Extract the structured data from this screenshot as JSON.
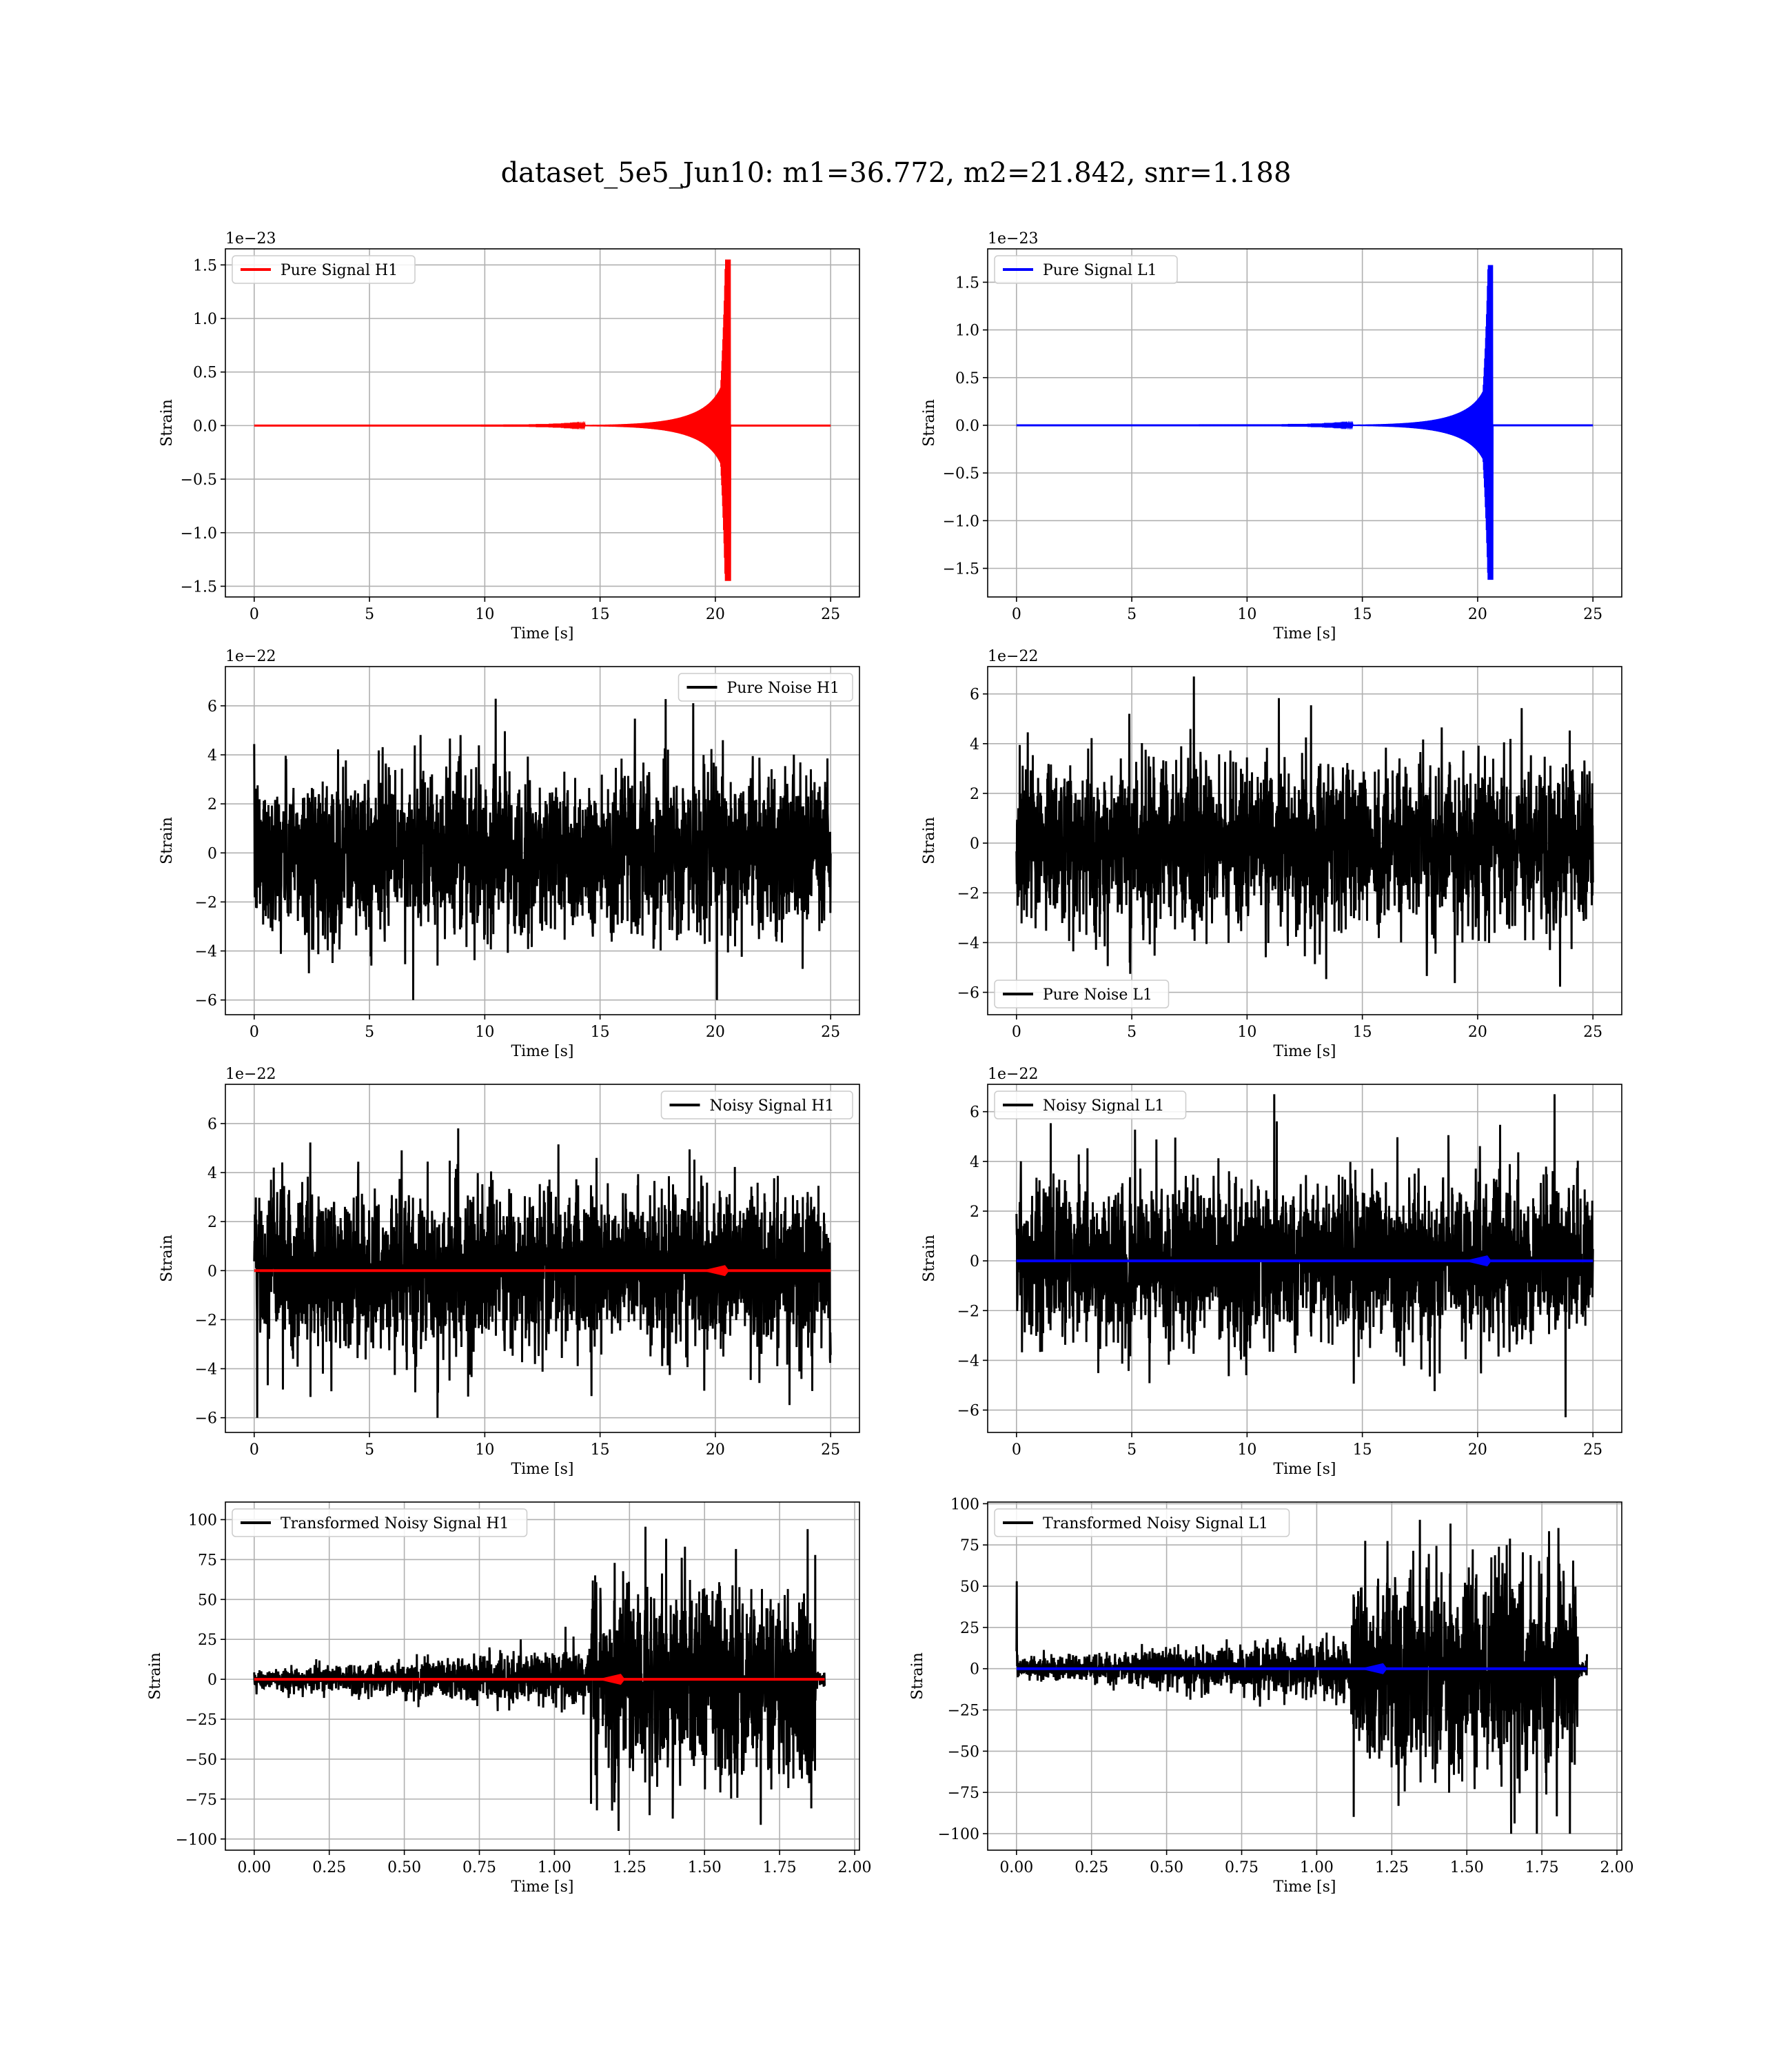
{
  "figure": {
    "title": "dataset_5e5_Jun10: m1=36.772, m2=21.842, snr=1.188"
  },
  "colors": {
    "h1_signal": "#ff0000",
    "l1_signal": "#0000ff",
    "noise": "#000000",
    "grid": "#b0b0b0"
  },
  "chart_data": [
    {
      "type": "line",
      "panel": "pure-signal-h1",
      "xlabel": "Time [s]",
      "ylabel": "Strain",
      "offset_text": "1e−23",
      "xlim": [
        -1.25,
        26.25
      ],
      "ylim": [
        -1.6,
        1.65
      ],
      "xticks": [
        0,
        5,
        10,
        15,
        20,
        25
      ],
      "xtick_labels": [
        "0",
        "5",
        "10",
        "15",
        "20",
        "25"
      ],
      "yticks": [
        -1.5,
        -1.0,
        -0.5,
        0.0,
        0.5,
        1.0,
        1.5
      ],
      "ytick_labels": [
        "−1.5",
        "−1.0",
        "−0.5",
        "0.0",
        "0.5",
        "1.0",
        "1.5"
      ],
      "legend_position": "upper left",
      "grid": true,
      "series": [
        {
          "name": "Pure Signal H1",
          "color": "#ff0000",
          "kind": "chirp",
          "t_start": 0,
          "t_end": 25,
          "merger_time": 20.6,
          "peak_pos": 1.55,
          "peak_neg": -1.45,
          "scale": "1e-23"
        }
      ]
    },
    {
      "type": "line",
      "panel": "pure-signal-l1",
      "xlabel": "Time [s]",
      "ylabel": "Strain",
      "offset_text": "1e−23",
      "xlim": [
        -1.25,
        26.25
      ],
      "ylim": [
        -1.8,
        1.85
      ],
      "xticks": [
        0,
        5,
        10,
        15,
        20,
        25
      ],
      "xtick_labels": [
        "0",
        "5",
        "10",
        "15",
        "20",
        "25"
      ],
      "yticks": [
        -1.5,
        -1.0,
        -0.5,
        0.0,
        0.5,
        1.0,
        1.5
      ],
      "ytick_labels": [
        "−1.5",
        "−1.0",
        "−0.5",
        "0.0",
        "0.5",
        "1.0",
        "1.5"
      ],
      "legend_position": "upper left",
      "grid": true,
      "series": [
        {
          "name": "Pure Signal L1",
          "color": "#0000ff",
          "kind": "chirp",
          "t_start": 0,
          "t_end": 25,
          "merger_time": 20.6,
          "peak_pos": 1.68,
          "peak_neg": -1.62,
          "scale": "1e-23"
        }
      ]
    },
    {
      "type": "line",
      "panel": "pure-noise-h1",
      "xlabel": "Time [s]",
      "ylabel": "Strain",
      "offset_text": "1e−22",
      "xlim": [
        -1.25,
        26.25
      ],
      "ylim": [
        -6.6,
        7.6
      ],
      "xticks": [
        0,
        5,
        10,
        15,
        20,
        25
      ],
      "xtick_labels": [
        "0",
        "5",
        "10",
        "15",
        "20",
        "25"
      ],
      "yticks": [
        -6,
        -4,
        -2,
        0,
        2,
        4,
        6
      ],
      "ytick_labels": [
        "−6",
        "−4",
        "−2",
        "0",
        "2",
        "4",
        "6"
      ],
      "legend_position": "upper right",
      "grid": true,
      "series": [
        {
          "name": "Pure Noise H1",
          "color": "#000000",
          "kind": "noise",
          "t_start": 0,
          "t_end": 25,
          "max": 7.0,
          "min": -6.0,
          "scale": "1e-22"
        }
      ]
    },
    {
      "type": "line",
      "panel": "pure-noise-l1",
      "xlabel": "Time [s]",
      "ylabel": "Strain",
      "offset_text": "1e−22",
      "xlim": [
        -1.25,
        26.25
      ],
      "ylim": [
        -6.9,
        7.1
      ],
      "xticks": [
        0,
        5,
        10,
        15,
        20,
        25
      ],
      "xtick_labels": [
        "0",
        "5",
        "10",
        "15",
        "20",
        "25"
      ],
      "yticks": [
        -6,
        -4,
        -2,
        0,
        2,
        4,
        6
      ],
      "ytick_labels": [
        "−6",
        "−4",
        "−2",
        "0",
        "2",
        "4",
        "6"
      ],
      "legend_position": "lower left",
      "grid": true,
      "series": [
        {
          "name": "Pure Noise L1",
          "color": "#000000",
          "kind": "noise",
          "t_start": 0,
          "t_end": 25,
          "max": 6.7,
          "min": -6.3,
          "scale": "1e-22"
        }
      ]
    },
    {
      "type": "line",
      "panel": "noisy-signal-h1",
      "xlabel": "Time [s]",
      "ylabel": "Strain",
      "offset_text": "1e−22",
      "xlim": [
        -1.25,
        26.25
      ],
      "ylim": [
        -6.6,
        7.6
      ],
      "xticks": [
        0,
        5,
        10,
        15,
        20,
        25
      ],
      "xtick_labels": [
        "0",
        "5",
        "10",
        "15",
        "20",
        "25"
      ],
      "yticks": [
        -6,
        -4,
        -2,
        0,
        2,
        4,
        6
      ],
      "ytick_labels": [
        "−6",
        "−4",
        "−2",
        "0",
        "2",
        "4",
        "6"
      ],
      "legend_position": "upper right",
      "grid": true,
      "series": [
        {
          "name": "Noisy Signal H1",
          "color": "#000000",
          "kind": "noise",
          "t_start": 0,
          "t_end": 25,
          "max": 7.0,
          "min": -6.0,
          "scale": "1e-22"
        },
        {
          "color": "#ff0000",
          "kind": "flat_signal",
          "t_start": 0,
          "t_end": 25,
          "merger_time": 20.6
        }
      ]
    },
    {
      "type": "line",
      "panel": "noisy-signal-l1",
      "xlabel": "Time [s]",
      "ylabel": "Strain",
      "offset_text": "1e−22",
      "xlim": [
        -1.25,
        26.25
      ],
      "ylim": [
        -6.9,
        7.1
      ],
      "xticks": [
        0,
        5,
        10,
        15,
        20,
        25
      ],
      "xtick_labels": [
        "0",
        "5",
        "10",
        "15",
        "20",
        "25"
      ],
      "yticks": [
        -6,
        -4,
        -2,
        0,
        2,
        4,
        6
      ],
      "ytick_labels": [
        "−6",
        "−4",
        "−2",
        "0",
        "2",
        "4",
        "6"
      ],
      "legend_position": "upper left",
      "grid": true,
      "series": [
        {
          "name": "Noisy Signal L1",
          "color": "#000000",
          "kind": "noise",
          "t_start": 0,
          "t_end": 25,
          "max": 6.7,
          "min": -6.3,
          "scale": "1e-22"
        },
        {
          "color": "#0000ff",
          "kind": "flat_signal",
          "t_start": 0,
          "t_end": 25,
          "merger_time": 20.6
        }
      ]
    },
    {
      "type": "line",
      "panel": "transformed-noisy-signal-h1",
      "xlabel": "Time [s]",
      "ylabel": "Strain",
      "offset_text": "",
      "xlim": [
        -0.096,
        2.016
      ],
      "ylim": [
        -107,
        111
      ],
      "xticks": [
        0.0,
        0.25,
        0.5,
        0.75,
        1.0,
        1.25,
        1.5,
        1.75,
        2.0
      ],
      "xtick_labels": [
        "0.00",
        "0.25",
        "0.50",
        "0.75",
        "1.00",
        "1.25",
        "1.50",
        "1.75",
        "2.00"
      ],
      "yticks": [
        -100,
        -75,
        -50,
        -25,
        0,
        25,
        50,
        75,
        100
      ],
      "ytick_labels": [
        "−100",
        "−75",
        "−50",
        "−25",
        "0",
        "25",
        "50",
        "75",
        "100"
      ],
      "legend_position": "upper left",
      "grid": true,
      "series": [
        {
          "name": "Transformed Noisy Signal H1",
          "color": "#000000",
          "kind": "whitened",
          "t_start": 0,
          "t_end": 1.9,
          "onset": 1.12,
          "end_burst": 1.87,
          "max": 103,
          "min": -98
        },
        {
          "color": "#ff0000",
          "kind": "flat_signal",
          "t_start": 0,
          "t_end": 1.9,
          "merger_time": 1.235
        }
      ]
    },
    {
      "type": "line",
      "panel": "transformed-noisy-signal-l1",
      "xlabel": "Time [s]",
      "ylabel": "Strain",
      "offset_text": "",
      "xlim": [
        -0.096,
        2.016
      ],
      "ylim": [
        -110,
        101
      ],
      "xticks": [
        0.0,
        0.25,
        0.5,
        0.75,
        1.0,
        1.25,
        1.5,
        1.75,
        2.0
      ],
      "xtick_labels": [
        "0.00",
        "0.25",
        "0.50",
        "0.75",
        "1.00",
        "1.25",
        "1.50",
        "1.75",
        "2.00"
      ],
      "yticks": [
        -100,
        -75,
        -50,
        -25,
        0,
        25,
        50,
        75,
        100
      ],
      "ytick_labels": [
        "−100",
        "−75",
        "−50",
        "−25",
        "0",
        "25",
        "50",
        "75",
        "100"
      ],
      "legend_position": "upper left",
      "grid": true,
      "series": [
        {
          "name": "Transformed Noisy Signal L1",
          "color": "#000000",
          "kind": "whitened",
          "t_start": 0,
          "t_end": 1.9,
          "onset": 1.12,
          "end_burst": 1.87,
          "max": 94,
          "min": -100,
          "spike_at_start": 53
        },
        {
          "color": "#0000ff",
          "kind": "flat_signal",
          "t_start": 0,
          "t_end": 1.9,
          "merger_time": 1.235
        }
      ]
    }
  ]
}
